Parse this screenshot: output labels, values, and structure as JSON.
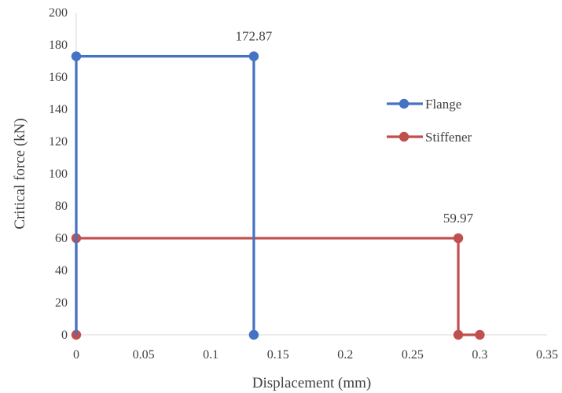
{
  "chart_data": {
    "type": "scatter",
    "title": "",
    "xlabel": "Displacement (mm)",
    "ylabel": "Critical force (kN)",
    "xlim": [
      0,
      0.35
    ],
    "ylim": [
      0,
      200
    ],
    "xticks": [
      0,
      0.05,
      0.1,
      0.15,
      0.2,
      0.25,
      0.3,
      0.35
    ],
    "yticks": [
      0,
      20,
      40,
      60,
      80,
      100,
      120,
      140,
      160,
      180,
      200
    ],
    "xtick_labels": [
      "0",
      "0.05",
      "0.1",
      "0.15",
      "0.2",
      "0.25",
      "0.3",
      "0.35"
    ],
    "ytick_labels": [
      "0",
      "20",
      "40",
      "60",
      "80",
      "100",
      "120",
      "140",
      "160",
      "180",
      "200"
    ],
    "grid": false,
    "legend_position": "right",
    "series": [
      {
        "name": "Flange",
        "color": "#4472C4",
        "points": [
          [
            0,
            172.87
          ],
          [
            0.132,
            172.87
          ],
          [
            0.132,
            0
          ]
        ],
        "connect_from_origin": true
      },
      {
        "name": "Stiffener",
        "color": "#C0504D",
        "points": [
          [
            0,
            0
          ],
          [
            0,
            59.97
          ],
          [
            0.284,
            59.97
          ],
          [
            0.284,
            0
          ],
          [
            0.3,
            0
          ]
        ],
        "connect_from_origin": false
      }
    ],
    "annotations": [
      {
        "text": "172.87",
        "x": 0.132,
        "y": 172.87
      },
      {
        "text": "59.97",
        "x": 0.284,
        "y": 59.97
      }
    ]
  }
}
